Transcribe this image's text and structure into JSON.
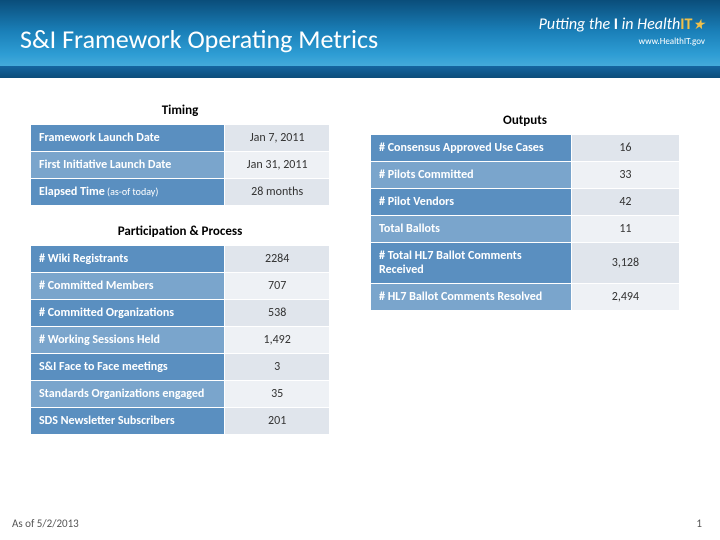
{
  "header": {
    "title": "S&I Framework Operating Metrics",
    "logo_tagline_prefix": "Putting the",
    "logo_tagline_i": "I",
    "logo_tagline_mid": "in",
    "logo_health": "Health",
    "logo_it": "IT",
    "logo_url": "www.HealthIT.gov"
  },
  "timing": {
    "title": "Timing",
    "rows": [
      {
        "label": "Framework Launch Date",
        "value": "Jan 7, 2011"
      },
      {
        "label": "First Initiative Launch Date",
        "value": "Jan 31, 2011"
      },
      {
        "label": "Elapsed Time",
        "label_suffix": "(as-of today)",
        "value": "28 months"
      }
    ]
  },
  "participation": {
    "title": "Participation & Process",
    "rows": [
      {
        "label": "# Wiki Registrants",
        "value": "2284"
      },
      {
        "label": "# Committed Members",
        "value": "707"
      },
      {
        "label": "# Committed Organizations",
        "value": "538"
      },
      {
        "label": "# Working Sessions Held",
        "value": "1,492"
      },
      {
        "label": "S&I Face to Face meetings",
        "value": "3"
      },
      {
        "label": "Standards Organizations engaged",
        "value": "35"
      },
      {
        "label": "SDS Newsletter Subscribers",
        "value": "201"
      }
    ]
  },
  "outputs": {
    "title": "Outputs",
    "rows": [
      {
        "label": "# Consensus Approved Use Cases",
        "value": "16"
      },
      {
        "label": "# Pilots Committed",
        "value": "33"
      },
      {
        "label": "# Pilot Vendors",
        "value": "42"
      },
      {
        "label": "Total Ballots",
        "value": "11"
      },
      {
        "label": "# Total HL7 Ballot Comments Received",
        "value": "3,128"
      },
      {
        "label": "# HL7 Ballot Comments Resolved",
        "value": "2,494"
      }
    ]
  },
  "footer": {
    "asof": "As of 5/2/2013",
    "page": "1"
  },
  "style": {
    "label_bg_colors": [
      "#5a8fc0",
      "#7aa5cc"
    ],
    "value_bg_colors": [
      "#e0e5ec",
      "#eef1f5"
    ],
    "header_gradient": [
      "#0a4d7a",
      "#5bb8e0"
    ],
    "title_color": "#ffffff",
    "accent_color": "#f0c04a"
  }
}
